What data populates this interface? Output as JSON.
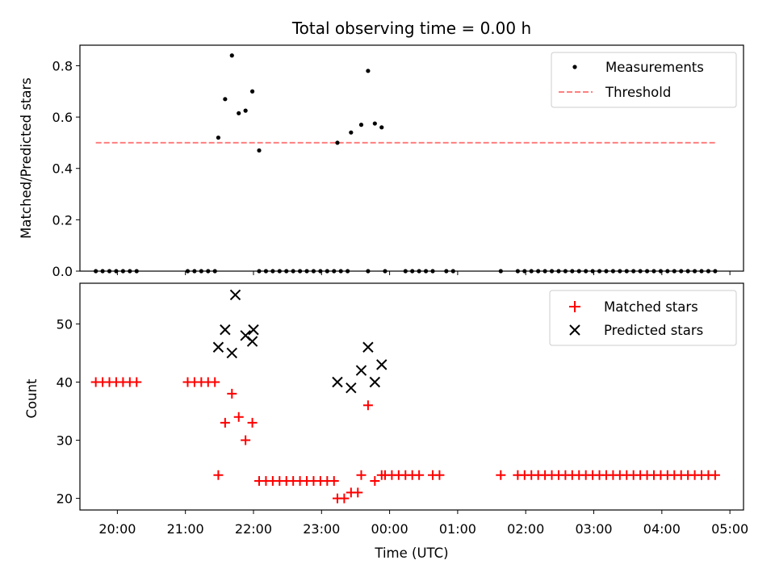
{
  "chart_data": [
    {
      "type": "scatter",
      "title": "Total observing time = 0.00 h",
      "xlabel": "",
      "ylabel": "Matched/Predicted stars",
      "xlim": [
        "19:27",
        "05:12"
      ],
      "ylim": [
        0,
        0.88
      ],
      "yticks": [
        0.0,
        0.2,
        0.4,
        0.6,
        0.8
      ],
      "ytick_labels": [
        "0.0",
        "0.2",
        "0.4",
        "0.6",
        "0.8"
      ],
      "legend_position": "top-right",
      "series": [
        {
          "name": "Measurements",
          "marker": "dot",
          "color": "#000000",
          "points": [
            [
              "19:41",
              0
            ],
            [
              "19:47",
              0
            ],
            [
              "19:53",
              0
            ],
            [
              "19:59",
              0
            ],
            [
              "20:05",
              0
            ],
            [
              "20:11",
              0
            ],
            [
              "20:17",
              0
            ],
            [
              "21:02",
              0
            ],
            [
              "21:08",
              0
            ],
            [
              "21:14",
              0
            ],
            [
              "21:20",
              0
            ],
            [
              "21:26",
              0
            ],
            [
              "21:29",
              0.52
            ],
            [
              "21:35",
              0.67
            ],
            [
              "21:41",
              0.84
            ],
            [
              "21:47",
              0.615
            ],
            [
              "21:53",
              0.625
            ],
            [
              "21:59",
              0.7
            ],
            [
              "22:05",
              0.47
            ],
            [
              "22:05",
              0
            ],
            [
              "22:11",
              0
            ],
            [
              "22:17",
              0
            ],
            [
              "22:23",
              0
            ],
            [
              "22:29",
              0
            ],
            [
              "22:35",
              0
            ],
            [
              "22:41",
              0
            ],
            [
              "22:47",
              0
            ],
            [
              "22:53",
              0
            ],
            [
              "22:59",
              0
            ],
            [
              "23:05",
              0
            ],
            [
              "23:11",
              0
            ],
            [
              "23:17",
              0
            ],
            [
              "23:23",
              0
            ],
            [
              "23:14",
              0.5
            ],
            [
              "23:26",
              0.54
            ],
            [
              "23:35",
              0.57
            ],
            [
              "23:41",
              0.78
            ],
            [
              "23:47",
              0.575
            ],
            [
              "23:53",
              0.56
            ],
            [
              "23:41",
              0
            ],
            [
              "23:56",
              0
            ],
            [
              "00:14",
              0
            ],
            [
              "00:20",
              0
            ],
            [
              "00:26",
              0
            ],
            [
              "00:32",
              0
            ],
            [
              "00:38",
              0
            ],
            [
              "00:50",
              0
            ],
            [
              "00:56",
              0
            ],
            [
              "01:38",
              0
            ],
            [
              "01:53",
              0
            ],
            [
              "01:59",
              0
            ],
            [
              "02:05",
              0
            ],
            [
              "02:11",
              0
            ],
            [
              "02:17",
              0
            ],
            [
              "02:23",
              0
            ],
            [
              "02:29",
              0
            ],
            [
              "02:35",
              0
            ],
            [
              "02:41",
              0
            ],
            [
              "02:47",
              0
            ],
            [
              "02:53",
              0
            ],
            [
              "02:59",
              0
            ],
            [
              "03:05",
              0
            ],
            [
              "03:11",
              0
            ],
            [
              "03:17",
              0
            ],
            [
              "03:23",
              0
            ],
            [
              "03:29",
              0
            ],
            [
              "03:35",
              0
            ],
            [
              "03:41",
              0
            ],
            [
              "03:47",
              0
            ],
            [
              "03:53",
              0
            ],
            [
              "03:59",
              0
            ],
            [
              "04:05",
              0
            ],
            [
              "04:11",
              0
            ],
            [
              "04:17",
              0
            ],
            [
              "04:23",
              0
            ],
            [
              "04:29",
              0
            ],
            [
              "04:35",
              0
            ],
            [
              "04:41",
              0
            ],
            [
              "04:47",
              0
            ]
          ]
        },
        {
          "name": "Threshold",
          "marker": "dashed-line",
          "color": "#ff7f7f",
          "points": [
            [
              "19:41",
              0.5
            ],
            [
              "04:47",
              0.5
            ]
          ]
        }
      ]
    },
    {
      "type": "scatter",
      "title": "",
      "xlabel": "Time (UTC)",
      "ylabel": "Count",
      "xlim": [
        "19:27",
        "05:12"
      ],
      "ylim": [
        18,
        57
      ],
      "yticks": [
        20,
        30,
        40,
        50
      ],
      "ytick_labels": [
        "20",
        "30",
        "40",
        "50"
      ],
      "xticks": [
        "20:00",
        "21:00",
        "22:00",
        "23:00",
        "00:00",
        "01:00",
        "02:00",
        "03:00",
        "04:00",
        "05:00"
      ],
      "legend_position": "top-right",
      "series": [
        {
          "name": "Matched stars",
          "marker": "plus",
          "color": "#ff0000",
          "points": [
            [
              "19:41",
              40
            ],
            [
              "19:47",
              40
            ],
            [
              "19:53",
              40
            ],
            [
              "19:59",
              40
            ],
            [
              "20:05",
              40
            ],
            [
              "20:11",
              40
            ],
            [
              "20:17",
              40
            ],
            [
              "21:02",
              40
            ],
            [
              "21:08",
              40
            ],
            [
              "21:14",
              40
            ],
            [
              "21:20",
              40
            ],
            [
              "21:26",
              40
            ],
            [
              "21:29",
              24
            ],
            [
              "21:35",
              33
            ],
            [
              "21:41",
              38
            ],
            [
              "21:47",
              34
            ],
            [
              "21:53",
              30
            ],
            [
              "21:59",
              33
            ],
            [
              "22:05",
              23
            ],
            [
              "22:11",
              23
            ],
            [
              "22:17",
              23
            ],
            [
              "22:23",
              23
            ],
            [
              "22:29",
              23
            ],
            [
              "22:35",
              23
            ],
            [
              "22:41",
              23
            ],
            [
              "22:47",
              23
            ],
            [
              "22:53",
              23
            ],
            [
              "22:59",
              23
            ],
            [
              "23:05",
              23
            ],
            [
              "23:11",
              23
            ],
            [
              "23:14",
              20
            ],
            [
              "23:20",
              20
            ],
            [
              "23:26",
              21
            ],
            [
              "23:32",
              21
            ],
            [
              "23:35",
              24
            ],
            [
              "23:41",
              36
            ],
            [
              "23:47",
              23
            ],
            [
              "23:53",
              24
            ],
            [
              "23:56",
              24
            ],
            [
              "00:02",
              24
            ],
            [
              "00:08",
              24
            ],
            [
              "00:14",
              24
            ],
            [
              "00:20",
              24
            ],
            [
              "00:26",
              24
            ],
            [
              "00:38",
              24
            ],
            [
              "00:44",
              24
            ],
            [
              "01:38",
              24
            ],
            [
              "01:53",
              24
            ],
            [
              "01:59",
              24
            ],
            [
              "02:05",
              24
            ],
            [
              "02:11",
              24
            ],
            [
              "02:17",
              24
            ],
            [
              "02:23",
              24
            ],
            [
              "02:29",
              24
            ],
            [
              "02:35",
              24
            ],
            [
              "02:41",
              24
            ],
            [
              "02:47",
              24
            ],
            [
              "02:53",
              24
            ],
            [
              "02:59",
              24
            ],
            [
              "03:05",
              24
            ],
            [
              "03:11",
              24
            ],
            [
              "03:17",
              24
            ],
            [
              "03:23",
              24
            ],
            [
              "03:29",
              24
            ],
            [
              "03:35",
              24
            ],
            [
              "03:41",
              24
            ],
            [
              "03:47",
              24
            ],
            [
              "03:53",
              24
            ],
            [
              "03:59",
              24
            ],
            [
              "04:05",
              24
            ],
            [
              "04:11",
              24
            ],
            [
              "04:17",
              24
            ],
            [
              "04:23",
              24
            ],
            [
              "04:29",
              24
            ],
            [
              "04:35",
              24
            ],
            [
              "04:41",
              24
            ],
            [
              "04:47",
              24
            ]
          ]
        },
        {
          "name": "Predicted stars",
          "marker": "x",
          "color": "#000000",
          "points": [
            [
              "21:29",
              46
            ],
            [
              "21:35",
              49
            ],
            [
              "21:41",
              45
            ],
            [
              "21:44",
              55
            ],
            [
              "21:53",
              48
            ],
            [
              "21:59",
              47
            ],
            [
              "22:00",
              49
            ],
            [
              "23:14",
              40
            ],
            [
              "23:26",
              39
            ],
            [
              "23:35",
              42
            ],
            [
              "23:41",
              46
            ],
            [
              "23:47",
              40
            ],
            [
              "23:53",
              43
            ]
          ]
        }
      ]
    }
  ]
}
